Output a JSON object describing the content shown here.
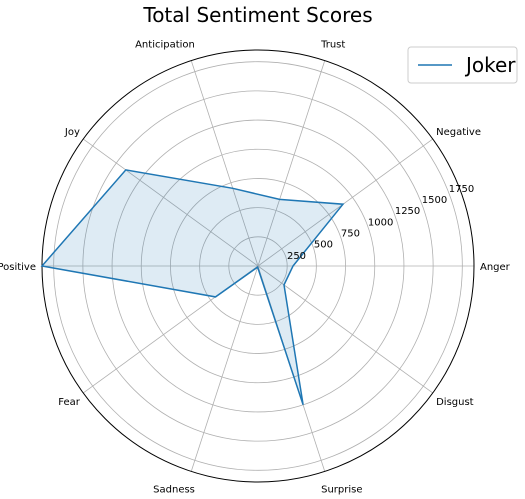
{
  "chart_data": {
    "type": "radar",
    "title": "Total Sentiment Scores",
    "categories": [
      "Anger",
      "Negative",
      "Trust",
      "Anticipation",
      "Joy",
      "Positive",
      "Fear",
      "Sadness",
      "Surprise",
      "Disgust"
    ],
    "series": [
      {
        "name": "Joker",
        "values": [
          300,
          900,
          600,
          700,
          1400,
          1850,
          450,
          10,
          1250,
          275
        ],
        "color": "#1f77b4"
      }
    ],
    "rlim": [
      0,
      1850
    ],
    "rticks": [
      250,
      500,
      750,
      1000,
      1250,
      1500,
      1750
    ],
    "tick_labels": [
      "250",
      "500",
      "750",
      "1000",
      "1250",
      "1500",
      "1750"
    ],
    "grid": true,
    "legend_position": "top-right"
  }
}
